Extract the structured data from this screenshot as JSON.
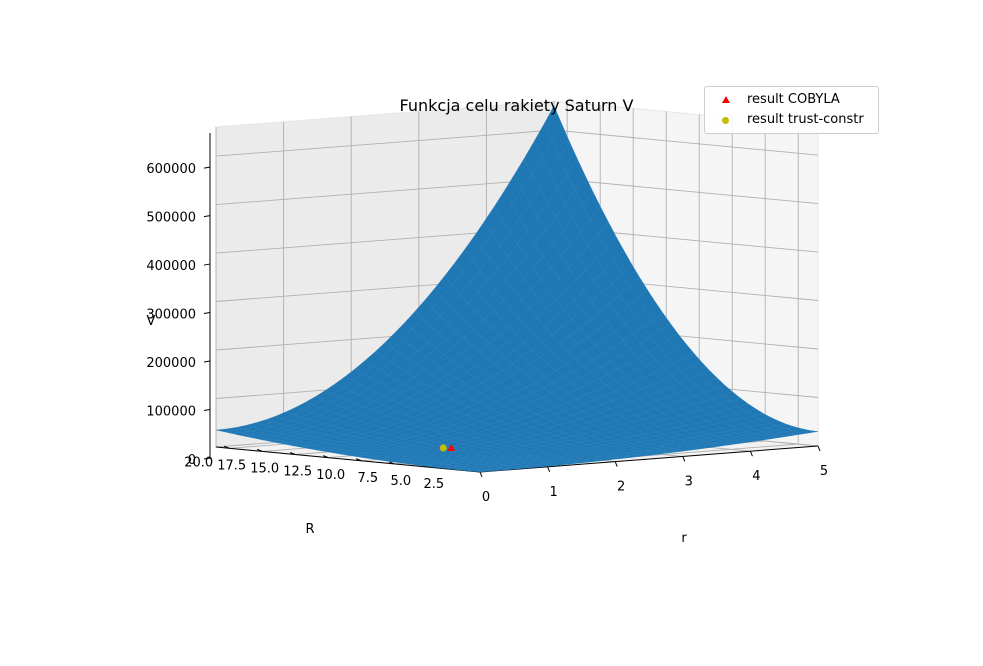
{
  "chart_data": {
    "type": "surface",
    "title": "Funkcja celu rakiety Saturn V",
    "xlabel": "r",
    "ylabel": "R",
    "zlabel": "V",
    "xlim": [
      0,
      5
    ],
    "ylim": [
      1.0,
      21.0
    ],
    "zlim": [
      0,
      660000
    ],
    "x_ticks": [
      "0",
      "1",
      "2",
      "3",
      "4",
      "5"
    ],
    "y_ticks": [
      "2.5",
      "5.0",
      "7.5",
      "10.0",
      "12.5",
      "15.0",
      "17.5",
      "20.0"
    ],
    "z_ticks": [
      "0",
      "100000",
      "200000",
      "300000",
      "400000",
      "500000",
      "600000"
    ],
    "surface": {
      "color": "#1f77b4",
      "r_range": [
        0,
        5
      ],
      "R_range": [
        1,
        21
      ],
      "corner_values": {
        "r0_R1": 0,
        "r5_R1": 30000,
        "r0_R21": 35000,
        "r5_R21": 650000
      }
    },
    "series": [
      {
        "name": "result COBYLA",
        "marker": "triangle",
        "color": "#ff0000",
        "r": 1.4,
        "R": 10.5,
        "V": 10000
      },
      {
        "name": "result trust-constr",
        "marker": "circle",
        "color": "#bfbf00",
        "r": 1.35,
        "R": 10.7,
        "V": 10000
      }
    ],
    "legend_position": "top-right",
    "grid": true
  }
}
